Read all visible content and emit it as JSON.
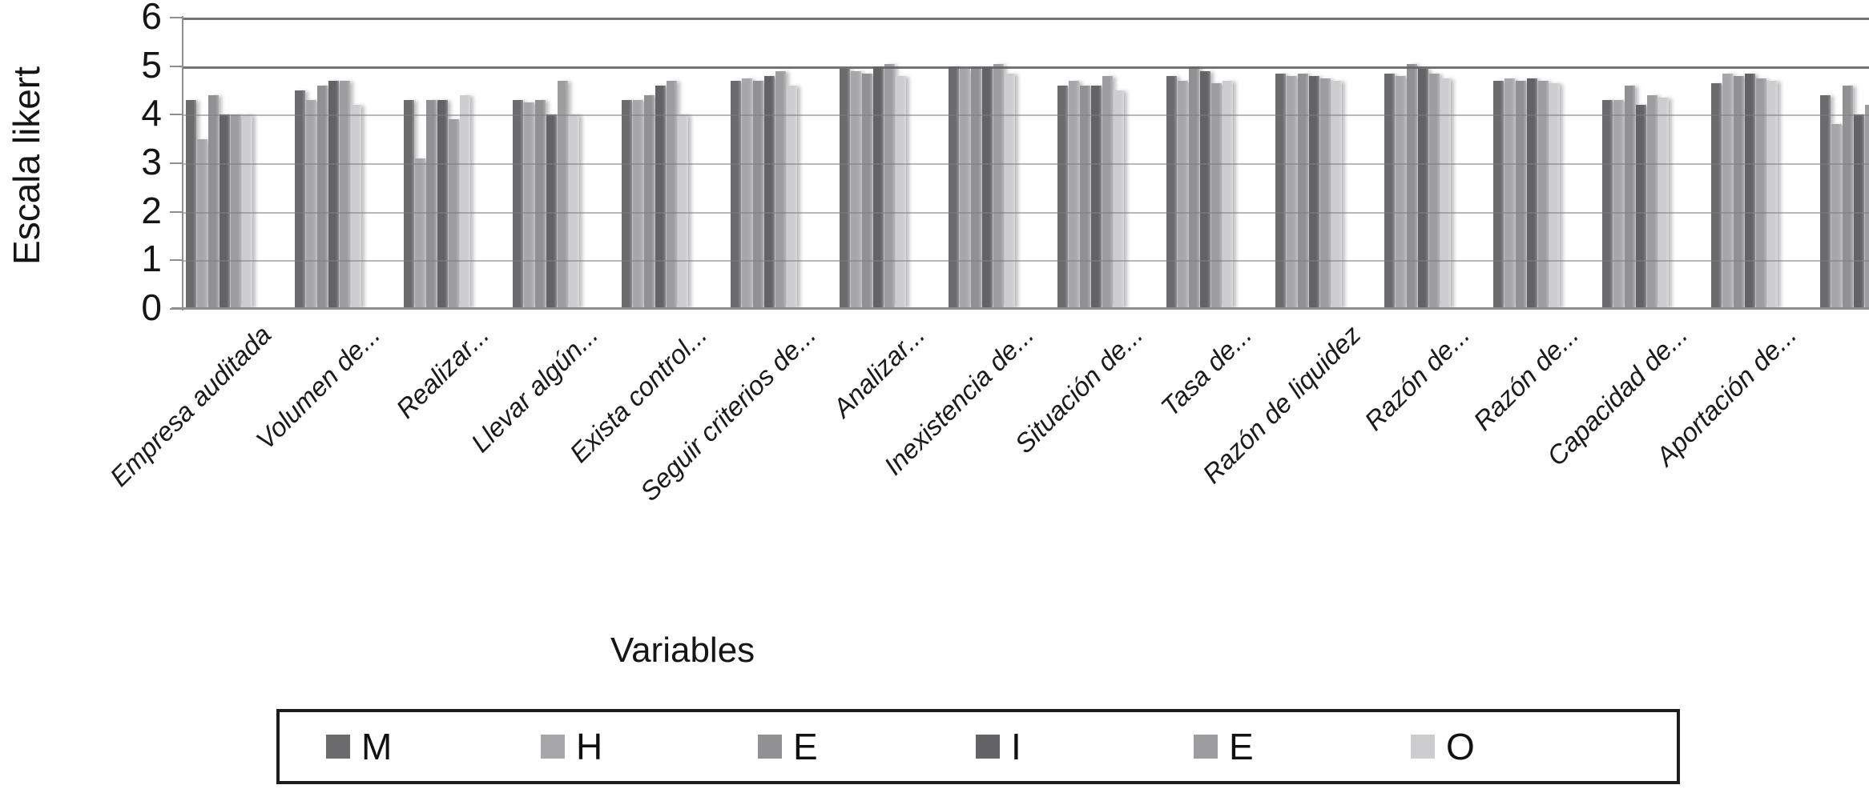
{
  "y_axis": {
    "title": "Escala likert",
    "ticks": [
      "0",
      "1",
      "2",
      "3",
      "4",
      "5",
      "6"
    ]
  },
  "x_axis": {
    "title": "Variables"
  },
  "legend": {
    "labels": [
      "M",
      "H",
      "E",
      "I",
      "E",
      "O"
    ]
  },
  "chart_data": {
    "type": "bar",
    "title": "",
    "xlabel": "Variables",
    "ylabel": "Escala likert",
    "ylim": [
      0,
      6
    ],
    "grid": true,
    "legend_position": "bottom",
    "note": "last category is clipped at the right image edge and has no visible label",
    "categories": [
      "Empresa auditada",
      "Volumen de...",
      "Realizar...",
      "Llevar algún...",
      "Exista control...",
      "Seguir criterios de...",
      "Analizar...",
      "Inexistencia de...",
      "Situación de...",
      "Tasa de...",
      "Razón de liquidez",
      "Razón de...",
      "Razón de...",
      "Capacidad de...",
      "Aportación de...",
      ""
    ],
    "series": [
      {
        "name": "M",
        "color": "#6b6b6d",
        "values": [
          4.3,
          4.5,
          4.3,
          4.3,
          4.3,
          4.7,
          4.95,
          5.0,
          4.6,
          4.8,
          4.85,
          4.85,
          4.7,
          4.3,
          4.65,
          4.4
        ]
      },
      {
        "name": "H",
        "color": "#a7a7a9",
        "values": [
          3.5,
          4.3,
          3.1,
          4.25,
          4.3,
          4.75,
          4.9,
          4.95,
          4.7,
          4.7,
          4.8,
          4.8,
          4.75,
          4.3,
          4.85,
          3.8
        ]
      },
      {
        "name": "E",
        "color": "#919193",
        "values": [
          4.4,
          4.6,
          4.3,
          4.3,
          4.4,
          4.7,
          4.85,
          5.0,
          4.6,
          5.0,
          4.85,
          5.05,
          4.7,
          4.6,
          4.8,
          4.6
        ]
      },
      {
        "name": "I",
        "color": "#636365",
        "values": [
          4.0,
          4.7,
          4.3,
          4.0,
          4.6,
          4.8,
          5.0,
          5.0,
          4.6,
          4.9,
          4.8,
          4.95,
          4.75,
          4.2,
          4.85,
          4.0
        ]
      },
      {
        "name": "E",
        "color": "#9d9d9f",
        "values": [
          4.0,
          4.7,
          3.9,
          4.7,
          4.7,
          4.9,
          5.05,
          5.05,
          4.8,
          4.65,
          4.75,
          4.85,
          4.7,
          4.4,
          4.75,
          4.2
        ]
      },
      {
        "name": "O",
        "color": "#cdcdcf",
        "values": [
          4.0,
          4.2,
          4.4,
          4.0,
          4.0,
          4.6,
          4.8,
          4.85,
          4.5,
          4.7,
          4.7,
          4.75,
          4.65,
          4.35,
          4.7,
          4.2
        ]
      }
    ]
  }
}
